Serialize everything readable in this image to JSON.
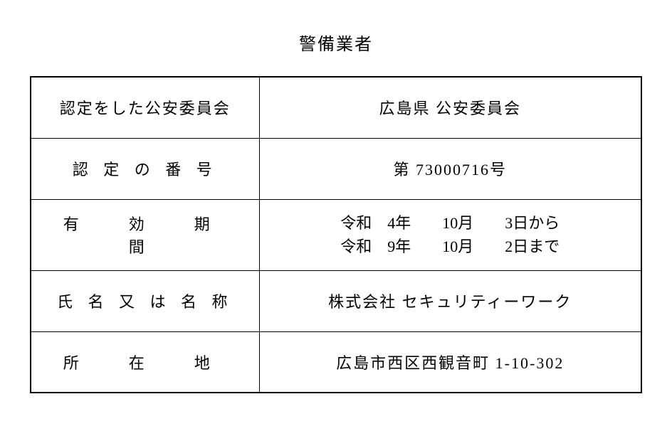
{
  "title": "警備業者",
  "rows": {
    "row1": {
      "label": "認定をした公安委員会",
      "value": "広島県 公安委員会"
    },
    "row2": {
      "label": "認 定 の 番 号",
      "value": "第 73000716号"
    },
    "row3": {
      "label": "有　効　期　間",
      "line1": "令和　4年　　10月　　3日から",
      "line2": "令和　9年　　10月　　2日まで"
    },
    "row4": {
      "label": "氏 名 又 は 名 称",
      "value": "株式会社 セキュリティーワーク"
    },
    "row5": {
      "label": "所　在　地",
      "value": "広島市西区西観音町 1-10-302"
    }
  }
}
